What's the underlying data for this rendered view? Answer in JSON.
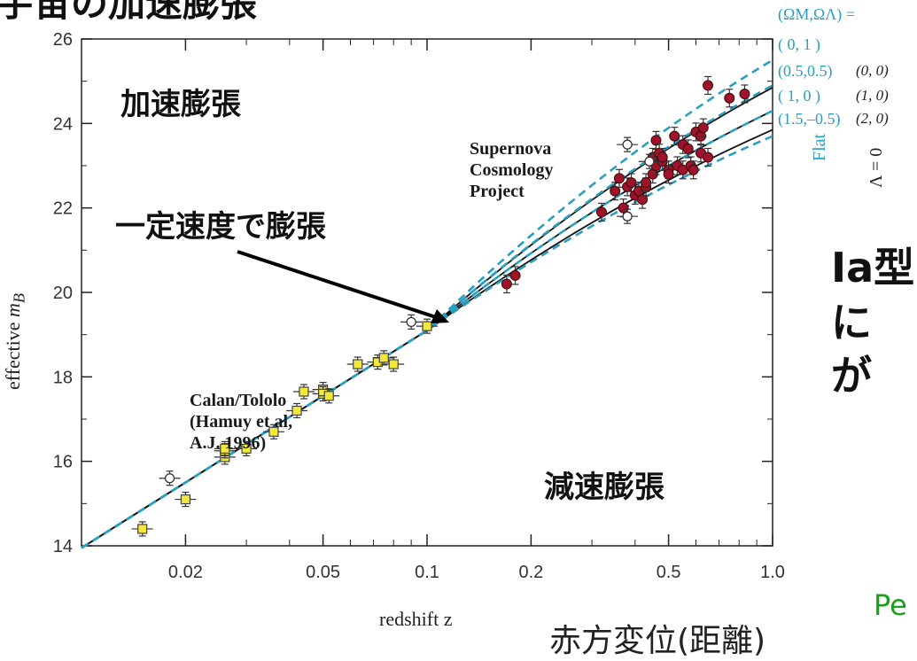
{
  "title_fragment": "宇宙の加速膨張",
  "labels": {
    "accelerating": "加速膨張",
    "constant": "一定速度で膨張",
    "decelerating": "減速膨張",
    "redshift_distance": "赤方変位(距離)",
    "right_text_1": "Ia型",
    "right_text_2": "に",
    "right_text_3": "が",
    "right_green": "Pe"
  },
  "annotations": {
    "scp_1": "Supernova",
    "scp_2": "Cosmology",
    "scp_3": "Project",
    "ct_1": "Calan/Tololo",
    "ct_2": "(Hamuy et al,",
    "ct_3": "A.J. 1996)"
  },
  "legend": {
    "header": "(ΩM,ΩΛ) =",
    "rows": [
      "( 0,  1 )",
      "(0.5,0.5)",
      "( 1,  0 )",
      "(1.5,–0.5)"
    ],
    "rows_lambda0": [
      "(0, 0)",
      "(1, 0)",
      "(2, 0)"
    ],
    "flat": "Flat",
    "lambda0": "Λ = 0"
  },
  "colors": {
    "dashed": "#2a9fc0",
    "solid": "#111111",
    "scp_fill": "#a0122a",
    "ct_fill": "#f2e83a",
    "open_fill": "#ffffff"
  },
  "chart_data": {
    "type": "scatter",
    "xlabel": "redshift  z",
    "ylabel": "effective  m_B",
    "x_scale": "log",
    "xlim": [
      0.01,
      1.0
    ],
    "ylim": [
      14,
      26
    ],
    "x_ticks": [
      0.02,
      0.05,
      0.1,
      0.2,
      0.5,
      1.0
    ],
    "x_tick_labels": [
      "0.02",
      "0.05",
      "0.1",
      "0.2",
      "0.5",
      "1.0"
    ],
    "y_ticks": [
      14,
      16,
      18,
      20,
      22,
      24,
      26
    ],
    "y_tick_labels": [
      "14",
      "16",
      "18",
      "20",
      "22",
      "24",
      "26"
    ],
    "series": [
      {
        "name": "Calan/Tololo (Hamuy et al, A.J. 1996)",
        "marker": "square",
        "x": [
          0.015,
          0.02,
          0.026,
          0.026,
          0.026,
          0.03,
          0.036,
          0.042,
          0.044,
          0.05,
          0.05,
          0.052,
          0.063,
          0.072,
          0.075,
          0.08,
          0.1
        ],
        "y": [
          14.4,
          15.1,
          16.1,
          16.25,
          16.3,
          16.3,
          16.7,
          17.2,
          17.65,
          17.7,
          17.6,
          17.55,
          18.3,
          18.35,
          18.45,
          18.3,
          19.2
        ]
      },
      {
        "name": "Supernova Cosmology Project",
        "marker": "circle",
        "x": [
          0.17,
          0.18,
          0.32,
          0.35,
          0.36,
          0.37,
          0.38,
          0.39,
          0.4,
          0.41,
          0.42,
          0.43,
          0.43,
          0.45,
          0.45,
          0.46,
          0.46,
          0.47,
          0.48,
          0.48,
          0.5,
          0.5,
          0.52,
          0.53,
          0.55,
          0.55,
          0.57,
          0.58,
          0.59,
          0.6,
          0.62,
          0.62,
          0.63,
          0.65,
          0.65,
          0.75,
          0.83
        ],
        "y": [
          20.2,
          20.4,
          21.9,
          22.4,
          22.7,
          22.0,
          22.5,
          22.6,
          22.3,
          22.4,
          22.2,
          22.5,
          22.6,
          22.8,
          23.2,
          23.0,
          23.6,
          23.3,
          23.1,
          23.2,
          22.9,
          22.8,
          23.7,
          23.0,
          22.9,
          23.5,
          23.4,
          23.0,
          22.9,
          23.8,
          23.3,
          23.7,
          23.9,
          24.9,
          23.2,
          24.6,
          24.7
        ]
      },
      {
        "name": "open circles",
        "marker": "open-circle",
        "x": [
          0.018,
          0.09,
          0.38,
          0.38,
          0.44
        ],
        "y": [
          15.6,
          19.3,
          23.5,
          21.8,
          23.1
        ]
      }
    ],
    "models_dashed": [
      {
        "name": "(0, 1)",
        "y_at_1": 25.5
      },
      {
        "name": "(0.5,0.5)",
        "y_at_1": 24.9
      },
      {
        "name": "(1, 0)",
        "y_at_1": 24.3
      },
      {
        "name": "(1.5,–0.5)",
        "y_at_1": 23.7
      }
    ],
    "models_solid": [
      {
        "name": "(0, 0)",
        "y_at_1": 24.85
      },
      {
        "name": "(1, 0)",
        "y_at_1": 24.3
      },
      {
        "name": "(2, 0)",
        "y_at_1": 23.85
      }
    ],
    "model_origin": {
      "x": 0.01,
      "y": 13.95
    },
    "model_knee": {
      "x": 0.1,
      "y": 19.1
    }
  }
}
